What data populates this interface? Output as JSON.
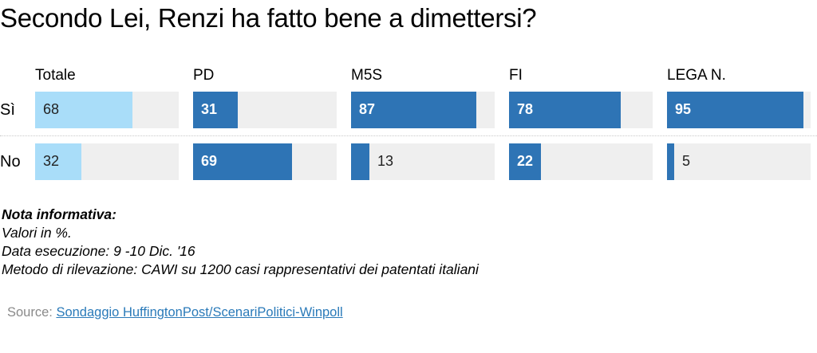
{
  "title": "Secondo Lei, Renzi ha fatto bene a dimettersi?",
  "chart_data": {
    "type": "bar",
    "title": "Secondo Lei, Renzi ha fatto bene a dimettersi?",
    "categories": [
      "Totale",
      "PD",
      "M5S",
      "FI",
      "LEGA N."
    ],
    "series": [
      {
        "name": "Sì",
        "values": [
          68,
          31,
          87,
          78,
          95
        ]
      },
      {
        "name": "No",
        "values": [
          32,
          69,
          13,
          22,
          5
        ]
      }
    ],
    "ylim": [
      0,
      100
    ],
    "unit": "%"
  },
  "colors": {
    "total": "#a9ddf9",
    "party": "#2e74b5",
    "track": "#efefef"
  },
  "notes": {
    "heading": "Nota informativa:",
    "line1": "Valori in %.",
    "line2": "Data esecuzione: 9 -10  Dic. '16",
    "line3": "Metodo di rilevazione: CAWI su 1200 casi rappresentativi dei patentati italiani"
  },
  "source": {
    "prefix": "Source: ",
    "link_text": "Sondaggio HuffingtonPost/ScenariPolitici-Winpoll"
  }
}
